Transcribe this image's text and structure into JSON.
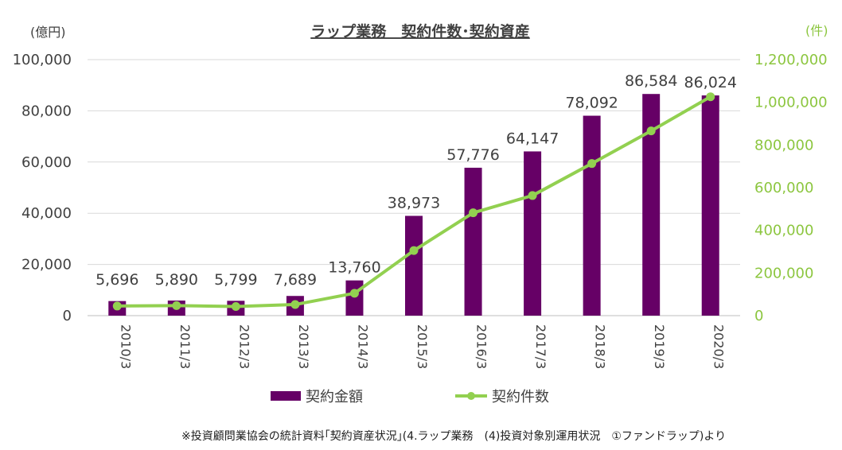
{
  "chart_data": {
    "type": "bar+line",
    "title": "ラップ業務　契約件数･契約資産",
    "left_unit": "(億円)",
    "right_unit": "(件)",
    "categories": [
      "2010/3",
      "2011/3",
      "2012/3",
      "2013/3",
      "2014/3",
      "2015/3",
      "2016/3",
      "2017/3",
      "2018/3",
      "2019/3",
      "2020/3"
    ],
    "y_left_ticks": [
      "0",
      "20,000",
      "40,000",
      "60,000",
      "80,000",
      "100,000"
    ],
    "y_right_ticks": [
      "0",
      "200,000",
      "400,000",
      "600,000",
      "800,000",
      "1,000,000",
      "1,200,000"
    ],
    "y_left_range": [
      0,
      100000
    ],
    "y_right_range": [
      0,
      1200000
    ],
    "series": [
      {
        "name": "契約金額",
        "kind": "bar",
        "axis": "left",
        "color": "#660066",
        "values": [
          5696,
          5890,
          5799,
          7689,
          13760,
          38973,
          57776,
          64147,
          78092,
          86584,
          86024
        ],
        "labels": [
          "5,696",
          "5,890",
          "5,799",
          "7,689",
          "13,760",
          "38,973",
          "57,776",
          "64,147",
          "78,092",
          "86,584",
          "86,024"
        ]
      },
      {
        "name": "契約件数",
        "kind": "line",
        "axis": "right",
        "color": "#92d050",
        "values": [
          45000,
          47000,
          43000,
          52000,
          105000,
          305000,
          482000,
          563000,
          713000,
          866000,
          1026000
        ]
      }
    ],
    "grid": true,
    "legend_position": "bottom"
  },
  "source_note": "※投資顧問業協会の統計資料｢契約資産状況｣(4.ラップ業務　(4)投資対象別運用状況　①ファンドラップ)より"
}
